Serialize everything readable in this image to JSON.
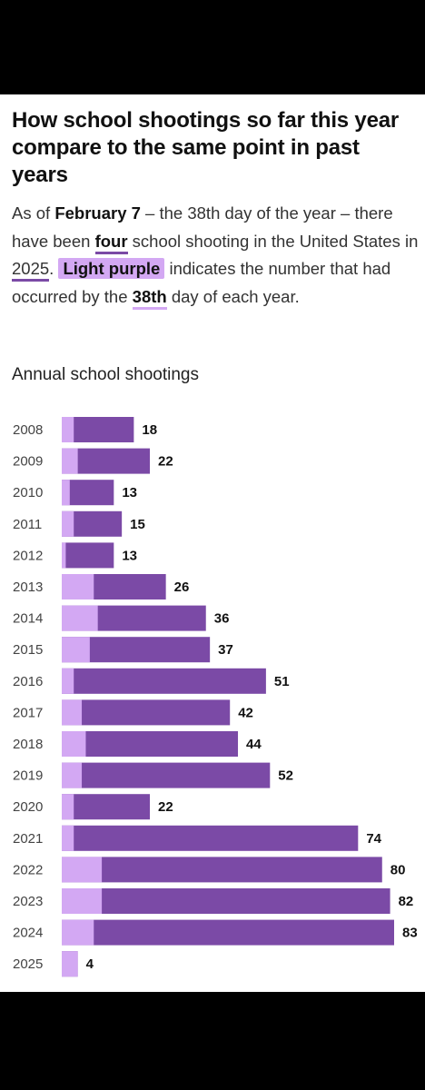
{
  "header": {
    "title": "How school shootings so far this year compare to the same point in past years",
    "sub": {
      "p1": "As of ",
      "date": "February 7",
      "p2": " – the 38th day of the year – there have been ",
      "count": "four",
      "p3": " school shooting in the United States in ",
      "year": "2025",
      "p4": ". ",
      "chip": "Light purple",
      "p5": " indicates the number that had occurred by the ",
      "day": "38th",
      "p6": " day of each year."
    }
  },
  "chart_heading": "Annual school shootings",
  "colors": {
    "annual": "#7b4aa6",
    "ytd": "#d3a8f3",
    "background": "#ffffff",
    "frame": "#000000"
  },
  "chart_data": {
    "type": "bar",
    "orientation": "horizontal",
    "stacked_overlay": true,
    "title": "Annual school shootings",
    "categories": [
      "2008",
      "2009",
      "2010",
      "2011",
      "2012",
      "2013",
      "2014",
      "2015",
      "2016",
      "2017",
      "2018",
      "2019",
      "2020",
      "2021",
      "2022",
      "2023",
      "2024",
      "2025"
    ],
    "series": [
      {
        "values": [
          18,
          22,
          13,
          15,
          13,
          26,
          36,
          37,
          51,
          42,
          44,
          52,
          22,
          74,
          80,
          82,
          83,
          4
        ]
      },
      {
        "values": [
          3,
          4,
          2,
          3,
          1,
          8,
          9,
          7,
          3,
          5,
          6,
          5,
          3,
          3,
          10,
          10,
          8,
          4
        ]
      }
    ],
    "xlim": [
      0,
      83
    ],
    "grid": false
  }
}
